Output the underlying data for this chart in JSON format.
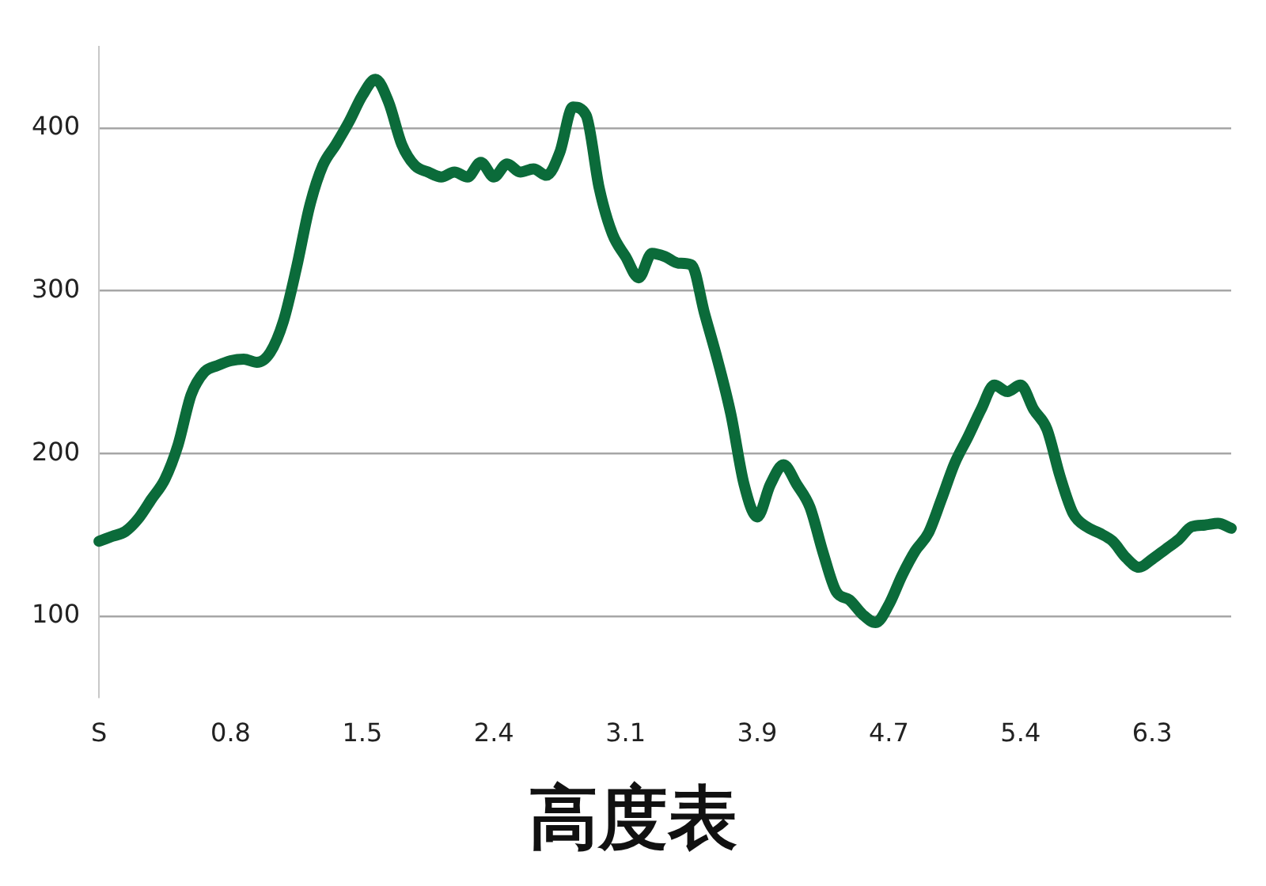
{
  "chart_data": {
    "type": "line",
    "title": "高度表",
    "categories": [
      "S",
      null,
      null,
      null,
      null,
      null,
      null,
      null,
      null,
      null,
      "0.8",
      null,
      null,
      null,
      null,
      null,
      null,
      null,
      null,
      null,
      "1.5",
      null,
      null,
      null,
      null,
      null,
      null,
      null,
      null,
      null,
      "2.4",
      null,
      null,
      null,
      null,
      null,
      null,
      null,
      null,
      null,
      "3.1",
      null,
      null,
      null,
      null,
      null,
      null,
      null,
      null,
      null,
      "3.9",
      null,
      null,
      null,
      null,
      null,
      null,
      null,
      null,
      null,
      "4.7",
      null,
      null,
      null,
      null,
      null,
      null,
      null,
      null,
      null,
      "5.4",
      null,
      null,
      null,
      null,
      null,
      null,
      null,
      null,
      null,
      "6.3",
      null,
      null,
      null,
      null,
      null,
      null
    ],
    "series": [
      {
        "color": "#0b6b3a",
        "values": [
          146,
          149,
          152,
          160,
          172,
          184,
          205,
          236,
          250,
          254,
          257,
          258,
          256,
          262,
          281,
          314,
          352,
          377,
          390,
          404,
          420,
          430,
          416,
          390,
          377,
          373,
          370,
          373,
          370,
          379,
          370,
          378,
          373,
          375,
          371,
          385,
          413,
          408,
          363,
          335,
          321,
          308,
          323,
          321,
          317,
          316,
          286,
          257,
          224,
          181,
          161,
          181,
          193,
          181,
          167,
          139,
          115,
          110,
          101,
          96,
          107,
          125,
          140,
          151,
          172,
          194,
          210,
          227,
          242,
          238,
          242,
          227,
          215,
          186,
          163,
          155,
          151,
          146,
          136,
          130,
          135,
          141,
          147,
          155,
          156,
          157,
          154
        ]
      }
    ],
    "ylim": [
      50,
      450
    ],
    "yticks": [
      100,
      200,
      300,
      400
    ],
    "grid": "y",
    "legend": false,
    "marker": "none",
    "line_style": "solid"
  }
}
